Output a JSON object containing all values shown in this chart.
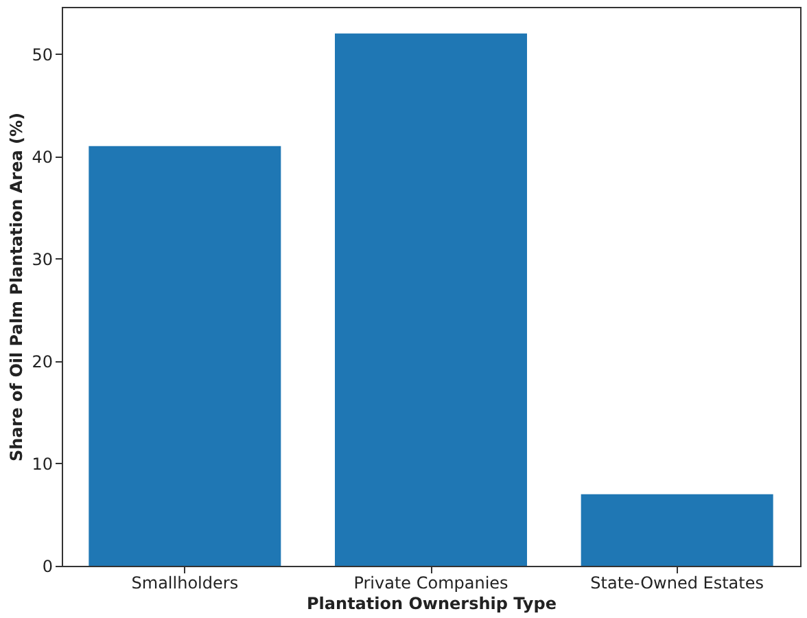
{
  "chart_data": {
    "type": "bar",
    "xlabel": "Plantation Ownership Type",
    "ylabel": "Share of Oil Palm Plantation Area (%)",
    "categories": [
      "Smallholders",
      "Private Companies",
      "State-Owned Estates"
    ],
    "values": [
      41,
      52,
      7
    ],
    "color": "#1f77b4",
    "ylim": [
      0,
      54.6
    ],
    "yticks": [
      0,
      10,
      20,
      30,
      40,
      50
    ],
    "grid": false
  }
}
